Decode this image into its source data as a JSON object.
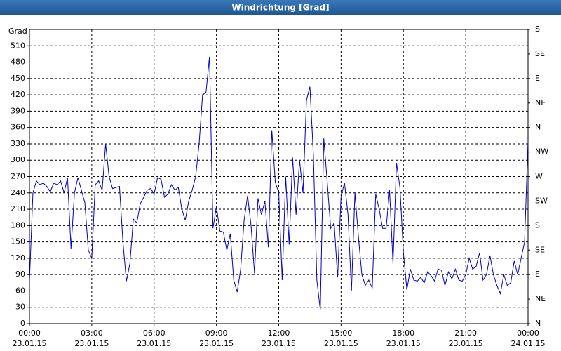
{
  "chart_data": {
    "type": "line",
    "title": "Windrichtung [Grad]",
    "y_label": "Grad",
    "xlim": [
      0,
      1440
    ],
    "xticks": [
      {
        "value": 0,
        "label": "00:00 23.01.15"
      },
      {
        "value": 180,
        "label": "03:00 23.01.15"
      },
      {
        "value": 360,
        "label": "06:00 23.01.15"
      },
      {
        "value": 540,
        "label": "09:00 23.01.15"
      },
      {
        "value": 720,
        "label": "12:00 23.01.15"
      },
      {
        "value": 900,
        "label": "15:00 23.01.15"
      },
      {
        "value": 1080,
        "label": "18:00 23.01.15"
      },
      {
        "value": 1260,
        "label": "21:00 23.01.15"
      },
      {
        "value": 1440,
        "label": "00:00 24.01.15"
      }
    ],
    "ylim": [
      0,
      540
    ],
    "yticks": [
      0,
      30,
      60,
      90,
      120,
      150,
      180,
      210,
      240,
      270,
      300,
      330,
      360,
      390,
      420,
      450,
      480,
      510
    ],
    "y2lim": [
      0,
      540
    ],
    "y2ticks": [
      {
        "value": 0,
        "label": "N"
      },
      {
        "value": 45,
        "label": "NE"
      },
      {
        "value": 90,
        "label": "E"
      },
      {
        "value": 135,
        "label": "SE"
      },
      {
        "value": 180,
        "label": "S"
      },
      {
        "value": 225,
        "label": "SW"
      },
      {
        "value": 270,
        "label": "W"
      },
      {
        "value": 315,
        "label": "NW"
      },
      {
        "value": 360,
        "label": "N"
      },
      {
        "value": 405,
        "label": "NE"
      },
      {
        "value": 450,
        "label": "E"
      },
      {
        "value": 495,
        "label": "SE"
      },
      {
        "value": 540,
        "label": "S"
      }
    ],
    "grid": true,
    "x": [
      0,
      10,
      20,
      30,
      40,
      50,
      60,
      70,
      80,
      90,
      100,
      110,
      120,
      130,
      140,
      150,
      160,
      170,
      180,
      190,
      200,
      210,
      220,
      230,
      240,
      250,
      260,
      270,
      280,
      290,
      300,
      310,
      320,
      330,
      340,
      350,
      360,
      370,
      380,
      390,
      400,
      410,
      420,
      430,
      440,
      450,
      460,
      470,
      480,
      490,
      500,
      510,
      520,
      530,
      540,
      550,
      560,
      570,
      580,
      590,
      600,
      610,
      620,
      630,
      640,
      650,
      660,
      670,
      680,
      690,
      700,
      710,
      720,
      730,
      740,
      750,
      760,
      770,
      780,
      790,
      800,
      810,
      820,
      830,
      840,
      850,
      860,
      870,
      880,
      890,
      900,
      910,
      920,
      930,
      940,
      950,
      960,
      970,
      980,
      990,
      1000,
      1010,
      1020,
      1030,
      1040,
      1050,
      1060,
      1070,
      1080,
      1090,
      1100,
      1110,
      1120,
      1130,
      1140,
      1150,
      1160,
      1170,
      1180,
      1190,
      1200,
      1210,
      1220,
      1230,
      1240,
      1250,
      1260,
      1270,
      1280,
      1290,
      1300,
      1310,
      1320,
      1330,
      1340,
      1350,
      1360,
      1370,
      1380,
      1390,
      1400,
      1410,
      1420,
      1430,
      1440
    ],
    "series": [
      {
        "name": "Windrichtung",
        "color": "#0000c8",
        "values": [
          78,
          240,
          262,
          255,
          258,
          252,
          242,
          258,
          255,
          262,
          240,
          268,
          138,
          240,
          268,
          245,
          222,
          135,
          120,
          255,
          262,
          245,
          330,
          270,
          248,
          250,
          252,
          150,
          78,
          110,
          192,
          185,
          220,
          232,
          245,
          248,
          238,
          268,
          265,
          232,
          238,
          255,
          245,
          250,
          210,
          190,
          225,
          245,
          270,
          330,
          420,
          425,
          490,
          175,
          215,
          170,
          168,
          135,
          165,
          80,
          58,
          100,
          190,
          235,
          180,
          92,
          230,
          200,
          225,
          140,
          355,
          260,
          240,
          80,
          270,
          145,
          305,
          200,
          300,
          240,
          410,
          435,
          310,
          80,
          25,
          340,
          260,
          175,
          185,
          85,
          235,
          258,
          200,
          60,
          240,
          160,
          90,
          70,
          80,
          65,
          238,
          210,
          175,
          175,
          245,
          110,
          295,
          250,
          130,
          62,
          100,
          80,
          78,
          85,
          75,
          95,
          88,
          78,
          100,
          98,
          70,
          95,
          82,
          100,
          80,
          78,
          90,
          120,
          100,
          105,
          130,
          80,
          90,
          125,
          90,
          70,
          55,
          90,
          70,
          75,
          115,
          90,
          120,
          150,
          335
        ]
      }
    ]
  }
}
